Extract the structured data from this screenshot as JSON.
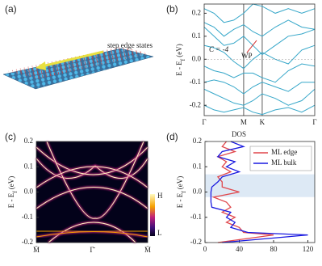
{
  "panel_a": {
    "label": "(a)",
    "annotation": "step edge states"
  },
  "chart_data": [
    {
      "type": "line",
      "panel_label": "(b)",
      "ylabel": "E - E_f (eV)",
      "ylim": [
        -0.245,
        0.24
      ],
      "yticks": [
        -0.2,
        -0.1,
        {
          "value": 0,
          "label": "0.0"
        },
        0.1,
        0.2
      ],
      "xlim": [
        0,
        2.8
      ],
      "xticks": [
        {
          "value": 0,
          "label": "Γ"
        },
        {
          "value": 1,
          "label": "M"
        },
        {
          "value": 1.47,
          "label": "K"
        },
        {
          "value": 2.8,
          "label": "Γ"
        }
      ],
      "annotations": [
        "C = -4",
        "WP"
      ],
      "x": [
        0,
        0.25,
        0.5,
        0.75,
        1,
        1.235,
        1.47,
        1.8,
        2.13,
        2.47,
        2.8
      ],
      "series": [
        {
          "color": "#36a7c9",
          "values": [
            0.22,
            0.2,
            0.16,
            0.17,
            0.2,
            0.24,
            0.23,
            0.2,
            0.22,
            0.2,
            0.22
          ]
        },
        {
          "color": "#36a7c9",
          "values": [
            0.16,
            0.14,
            0.1,
            0.13,
            0.15,
            0.12,
            0.1,
            0.14,
            0.17,
            0.14,
            0.13
          ]
        },
        {
          "color": "#36a7c9",
          "values": [
            0.14,
            0.1,
            0.06,
            0.07,
            0.1,
            0.06,
            0.02,
            0.06,
            0.1,
            0.11,
            0.13
          ]
        },
        {
          "color": "#36a7c9",
          "values": [
            0.06,
            0.05,
            0.03,
            -0.01,
            -0.04,
            0.0,
            0.03,
            0.0,
            -0.02,
            0.04,
            0.06
          ]
        },
        {
          "color": "#36a7c9",
          "values": [
            -0.03,
            -0.05,
            -0.06,
            -0.08,
            -0.06,
            -0.06,
            -0.08,
            -0.1,
            -0.05,
            -0.02,
            -0.03
          ]
        },
        {
          "color": "#36a7c9",
          "values": [
            -0.1,
            -0.09,
            -0.1,
            -0.12,
            -0.15,
            -0.12,
            -0.1,
            -0.12,
            -0.14,
            -0.1,
            -0.1
          ]
        },
        {
          "color": "#36a7c9",
          "values": [
            -0.13,
            -0.15,
            -0.17,
            -0.19,
            -0.2,
            -0.18,
            -0.15,
            -0.17,
            -0.2,
            -0.18,
            -0.13
          ]
        },
        {
          "color": "#36a7c9",
          "values": [
            -0.2,
            -0.22,
            -0.23,
            -0.22,
            -0.21,
            -0.23,
            -0.24,
            -0.22,
            -0.21,
            -0.23,
            -0.2
          ]
        }
      ]
    },
    {
      "type": "heatmap",
      "panel_label": "(c)",
      "ylabel": "E - E_f (eV)",
      "ylim": [
        -0.2,
        0.2
      ],
      "yticks": [
        -0.2,
        -0.1,
        {
          "value": 0,
          "label": "0.0"
        },
        0.1,
        0.2
      ],
      "categories": [
        "M̄",
        "Γ̄",
        "M̄"
      ],
      "colorbar_labels": [
        "H",
        "L"
      ],
      "colormap": [
        "#fffbc0",
        "#f5a000",
        "#c0207a",
        "#40107a",
        "#03021a"
      ]
    },
    {
      "type": "line",
      "orientation": "vertical",
      "panel_label": "(d)",
      "title": "DOS",
      "ylabel": "E - E_f (eV)",
      "ylim": [
        -0.2,
        0.2
      ],
      "yticks": [
        -0.2,
        -0.1,
        {
          "value": 0,
          "label": "0.0"
        },
        0.1,
        0.2
      ],
      "xlim": [
        0,
        128
      ],
      "xticks": [
        0,
        40,
        80,
        120
      ],
      "highlight": [
        -0.02,
        0.07
      ],
      "legend": "upper right",
      "y": [
        0.2,
        0.18,
        0.16,
        0.14,
        0.12,
        0.1,
        0.08,
        0.06,
        0.04,
        0.02,
        0,
        -0.02,
        -0.04,
        -0.06,
        -0.08,
        -0.1,
        -0.12,
        -0.14,
        -0.16,
        -0.17,
        -0.2
      ],
      "series": [
        {
          "name": "ML edge",
          "color": "#e0474c",
          "values": [
            25,
            20,
            35,
            15,
            25,
            20,
            30,
            15,
            20,
            20,
            40,
            10,
            25,
            30,
            20,
            35,
            25,
            40,
            45,
            80,
            15
          ]
        },
        {
          "name": "ML bulk",
          "color": "#1a1ae0",
          "values": [
            30,
            45,
            20,
            15,
            35,
            25,
            40,
            20,
            15,
            8,
            7,
            7,
            7,
            8,
            30,
            25,
            35,
            30,
            50,
            120,
            20
          ]
        }
      ]
    }
  ]
}
